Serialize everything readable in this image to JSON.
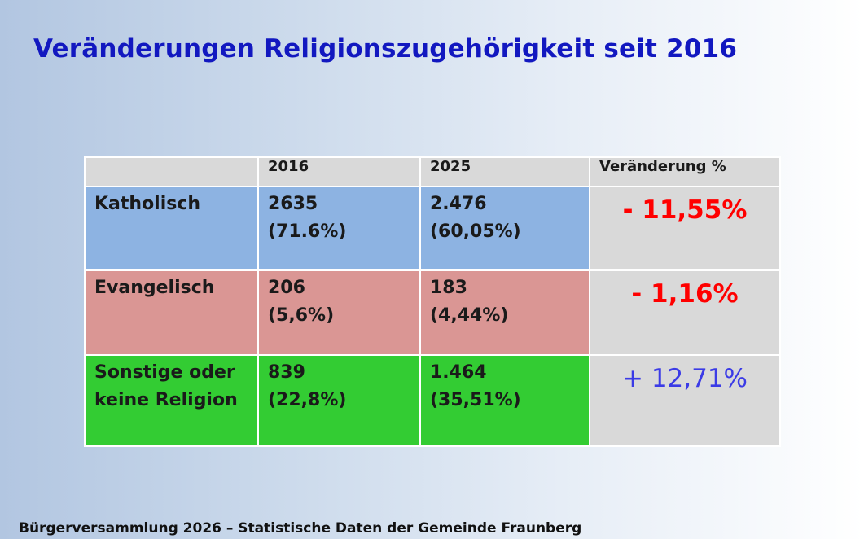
{
  "title": "Veränderungen Religionszugehörigkeit seit 2016",
  "table": {
    "headers": [
      "",
      "2016",
      "2025",
      "Veränderung %"
    ],
    "rows": [
      {
        "label": [
          "Katholisch"
        ],
        "v2016": [
          "2635",
          "(71.6%)"
        ],
        "v2025": [
          "2.476",
          "(60,05%)"
        ],
        "change": "- 11,55%"
      },
      {
        "label": [
          "Evangelisch"
        ],
        "v2016": [
          "206",
          "(5,6%)"
        ],
        "v2025": [
          "183",
          "(4,44%)"
        ],
        "change": "- 1,16%"
      },
      {
        "label": [
          "Sonstige oder",
          "keine Religion"
        ],
        "v2016": [
          "839",
          "(22,8%)"
        ],
        "v2025": [
          "1.464",
          "(35,51%)"
        ],
        "change": "+ 12,71%"
      }
    ]
  },
  "colors": {
    "title": "#1218c0",
    "katholisch": "#8db3e2",
    "evangelisch": "#da9694",
    "sonstige": "#33cc33",
    "neutral": "#d9d9d9",
    "negative": "#ff0000",
    "positive": "#3b3be6"
  },
  "footer": "Bürgerversammlung 2026 – Statistische Daten der Gemeinde Fraunberg"
}
